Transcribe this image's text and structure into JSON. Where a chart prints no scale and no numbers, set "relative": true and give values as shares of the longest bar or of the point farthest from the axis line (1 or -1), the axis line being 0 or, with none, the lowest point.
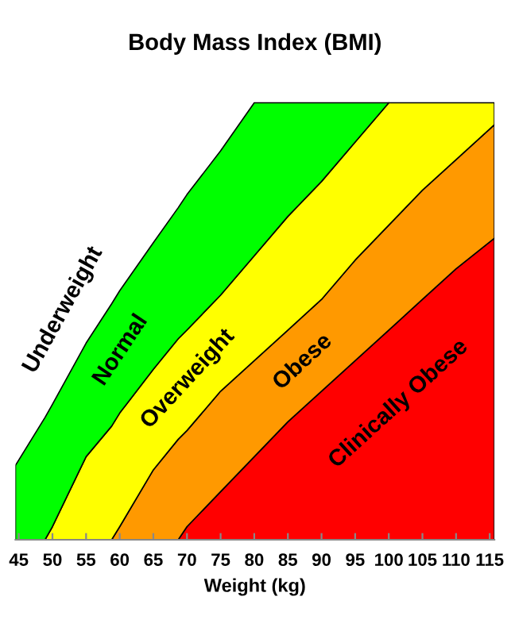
{
  "chart_data": {
    "type": "area",
    "title": "Body Mass Index (BMI)",
    "xlabel": "Weight (kg)",
    "relative": true,
    "stacked": true,
    "legend": false,
    "x": [
      44.5,
      48.9,
      50,
      55,
      58.8,
      60,
      65,
      68.7,
      70,
      75,
      80,
      85,
      90,
      95,
      100,
      105,
      110,
      115.7
    ],
    "xlim": [
      44.5,
      115.7
    ],
    "xticks": [
      45,
      50,
      55,
      60,
      65,
      70,
      75,
      80,
      85,
      90,
      95,
      100,
      105,
      110,
      115
    ],
    "series": [
      {
        "name": "Clinically Obese",
        "color": "#ff0000",
        "values": [
          0,
          0,
          0,
          0,
          0,
          0,
          0,
          0,
          0.03,
          0.11,
          0.19,
          0.27,
          0.34,
          0.41,
          0.48,
          0.55,
          0.62,
          0.69
        ]
      },
      {
        "name": "Obese",
        "color": "#ff9900",
        "values": [
          0,
          0,
          0,
          0,
          0,
          0.03,
          0.16,
          0.23,
          0.22,
          0.23,
          0.22,
          0.21,
          0.21,
          0.23,
          0.24,
          0.25,
          0.25,
          0.26
        ]
      },
      {
        "name": "Overweight",
        "color": "#ffff00",
        "values": [
          0,
          0,
          0.03,
          0.19,
          0.26,
          0.26,
          0.23,
          0.23,
          0.23,
          0.22,
          0.24,
          0.26,
          0.27,
          0.27,
          0.28,
          0.2,
          0.13,
          0.05
        ]
      },
      {
        "name": "Normal",
        "color": "#00ff00",
        "values": [
          0.17,
          0.28,
          0.28,
          0.26,
          0.28,
          0.28,
          0.29,
          0.3,
          0.31,
          0.33,
          0.35,
          0.26,
          0.18,
          0.09,
          0,
          null,
          null,
          null
        ]
      }
    ],
    "annotations": [
      "Underweight"
    ]
  }
}
